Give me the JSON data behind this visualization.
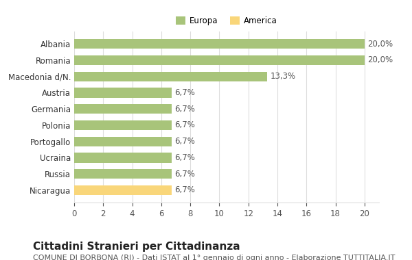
{
  "categories": [
    "Nicaragua",
    "Russia",
    "Ucraina",
    "Portogallo",
    "Polonia",
    "Germania",
    "Austria",
    "Macedonia d/N.",
    "Romania",
    "Albania"
  ],
  "values": [
    6.7,
    6.7,
    6.7,
    6.7,
    6.7,
    6.7,
    6.7,
    13.3,
    20.0,
    20.0
  ],
  "bar_colors": [
    "#f9d67a",
    "#a8c47a",
    "#a8c47a",
    "#a8c47a",
    "#a8c47a",
    "#a8c47a",
    "#a8c47a",
    "#a8c47a",
    "#a8c47a",
    "#a8c47a"
  ],
  "labels": [
    "6,7%",
    "6,7%",
    "6,7%",
    "6,7%",
    "6,7%",
    "6,7%",
    "6,7%",
    "13,3%",
    "20,0%",
    "20,0%"
  ],
  "xlim": [
    0,
    21
  ],
  "xticks": [
    0,
    2,
    4,
    6,
    8,
    10,
    12,
    14,
    16,
    18,
    20
  ],
  "legend_labels": [
    "Europa",
    "America"
  ],
  "legend_colors": [
    "#a8c47a",
    "#f9d67a"
  ],
  "title": "Cittadini Stranieri per Cittadinanza",
  "subtitle": "COMUNE DI BORBONA (RI) - Dati ISTAT al 1° gennaio di ogni anno - Elaborazione TUTTITALIA.IT",
  "background_color": "#ffffff",
  "grid_color": "#dddddd",
  "label_fontsize": 8.5,
  "title_fontsize": 11,
  "subtitle_fontsize": 8
}
